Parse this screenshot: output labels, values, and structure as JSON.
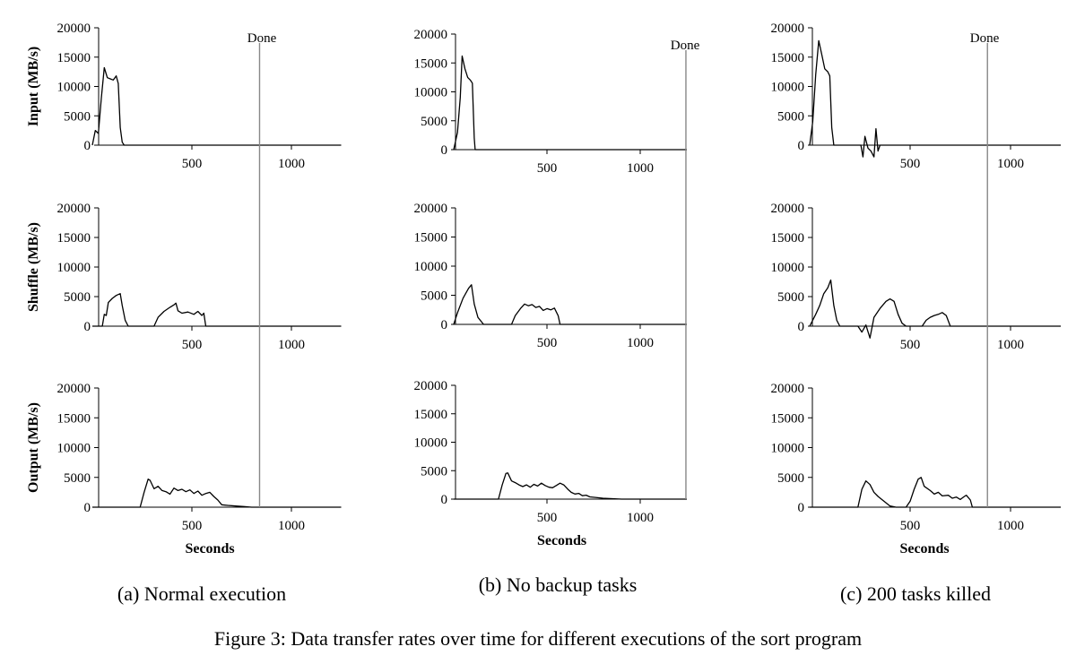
{
  "figure_caption": "Figure 3: Data transfer rates over time for different executions of the sort program",
  "panel_captions": [
    "(a) Normal execution",
    "(b) No backup tasks",
    "(c) 200 tasks killed"
  ],
  "row_labels": [
    "Input (MB/s)",
    "Shuffle (MB/s)",
    "Output (MB/s)"
  ],
  "x_label": "Seconds",
  "done_label": "Done",
  "y_ticks": [
    "0",
    "5000",
    "10000",
    "15000",
    "20000"
  ],
  "x_ticks": [
    "500",
    "1000"
  ],
  "chart_data": [
    {
      "type": "line",
      "panel": "(a) Normal execution",
      "ylim": [
        0,
        20000
      ],
      "xlim": [
        0,
        1250
      ],
      "done_x": 840,
      "series": [
        {
          "row": "Input (MB/s)",
          "points": [
            [
              0,
              0
            ],
            [
              15,
              2500
            ],
            [
              30,
              2000
            ],
            [
              45,
              8000
            ],
            [
              60,
              13200
            ],
            [
              75,
              11500
            ],
            [
              90,
              11300
            ],
            [
              105,
              11100
            ],
            [
              120,
              11800
            ],
            [
              130,
              10500
            ],
            [
              140,
              3000
            ],
            [
              150,
              500
            ],
            [
              160,
              0
            ],
            [
              1250,
              0
            ]
          ]
        },
        {
          "row": "Shuffle (MB/s)",
          "points": [
            [
              0,
              0
            ],
            [
              50,
              0
            ],
            [
              60,
              2000
            ],
            [
              70,
              1800
            ],
            [
              80,
              4000
            ],
            [
              100,
              4700
            ],
            [
              120,
              5200
            ],
            [
              140,
              5500
            ],
            [
              150,
              3500
            ],
            [
              165,
              1000
            ],
            [
              180,
              0
            ],
            [
              310,
              0
            ],
            [
              330,
              1500
            ],
            [
              360,
              2500
            ],
            [
              390,
              3200
            ],
            [
              410,
              3600
            ],
            [
              420,
              3900
            ],
            [
              430,
              2600
            ],
            [
              450,
              2200
            ],
            [
              480,
              2400
            ],
            [
              510,
              2000
            ],
            [
              530,
              2500
            ],
            [
              550,
              1800
            ],
            [
              560,
              2200
            ],
            [
              570,
              0
            ],
            [
              1250,
              0
            ]
          ]
        },
        {
          "row": "Output (MB/s)",
          "points": [
            [
              0,
              0
            ],
            [
              240,
              0
            ],
            [
              260,
              2500
            ],
            [
              280,
              4700
            ],
            [
              290,
              4500
            ],
            [
              310,
              3100
            ],
            [
              330,
              3500
            ],
            [
              350,
              2800
            ],
            [
              370,
              2600
            ],
            [
              390,
              2200
            ],
            [
              410,
              3200
            ],
            [
              430,
              2800
            ],
            [
              450,
              3000
            ],
            [
              470,
              2600
            ],
            [
              490,
              2900
            ],
            [
              510,
              2300
            ],
            [
              530,
              2700
            ],
            [
              550,
              2000
            ],
            [
              570,
              2300
            ],
            [
              590,
              2500
            ],
            [
              610,
              1800
            ],
            [
              630,
              1200
            ],
            [
              650,
              400
            ],
            [
              680,
              300
            ],
            [
              720,
              200
            ],
            [
              760,
              100
            ],
            [
              800,
              0
            ],
            [
              1250,
              0
            ]
          ]
        }
      ]
    },
    {
      "type": "line",
      "panel": "(b) No backup tasks",
      "ylim": [
        0,
        20000
      ],
      "xlim": [
        0,
        1250
      ],
      "done_x": 1245,
      "series": [
        {
          "row": "Input (MB/s)",
          "points": [
            [
              0,
              0
            ],
            [
              20,
              3000
            ],
            [
              35,
              9000
            ],
            [
              45,
              16200
            ],
            [
              60,
              14000
            ],
            [
              75,
              12500
            ],
            [
              90,
              12000
            ],
            [
              100,
              11500
            ],
            [
              110,
              2000
            ],
            [
              115,
              0
            ],
            [
              1250,
              0
            ]
          ]
        },
        {
          "row": "Shuffle (MB/s)",
          "points": [
            [
              0,
              0
            ],
            [
              20,
              2000
            ],
            [
              50,
              4500
            ],
            [
              80,
              6200
            ],
            [
              95,
              6800
            ],
            [
              110,
              3500
            ],
            [
              130,
              1200
            ],
            [
              160,
              0
            ],
            [
              310,
              0
            ],
            [
              330,
              1500
            ],
            [
              360,
              2800
            ],
            [
              380,
              3500
            ],
            [
              400,
              3200
            ],
            [
              420,
              3400
            ],
            [
              440,
              2900
            ],
            [
              460,
              3100
            ],
            [
              480,
              2400
            ],
            [
              500,
              2700
            ],
            [
              520,
              2500
            ],
            [
              540,
              2800
            ],
            [
              560,
              1500
            ],
            [
              570,
              0
            ],
            [
              1250,
              0
            ]
          ]
        },
        {
          "row": "Output (MB/s)",
          "points": [
            [
              0,
              0
            ],
            [
              240,
              0
            ],
            [
              260,
              2500
            ],
            [
              280,
              4500
            ],
            [
              290,
              4600
            ],
            [
              310,
              3200
            ],
            [
              330,
              2900
            ],
            [
              350,
              2500
            ],
            [
              370,
              2200
            ],
            [
              390,
              2500
            ],
            [
              410,
              2100
            ],
            [
              430,
              2600
            ],
            [
              450,
              2300
            ],
            [
              470,
              2800
            ],
            [
              490,
              2400
            ],
            [
              510,
              2100
            ],
            [
              530,
              2000
            ],
            [
              550,
              2400
            ],
            [
              570,
              2800
            ],
            [
              590,
              2500
            ],
            [
              610,
              1800
            ],
            [
              630,
              1200
            ],
            [
              650,
              900
            ],
            [
              670,
              1000
            ],
            [
              690,
              600
            ],
            [
              710,
              700
            ],
            [
              730,
              400
            ],
            [
              760,
              300
            ],
            [
              800,
              150
            ],
            [
              850,
              80
            ],
            [
              900,
              0
            ],
            [
              1250,
              0
            ]
          ]
        }
      ]
    },
    {
      "type": "line",
      "panel": "(c) 200 tasks killed",
      "ylim": [
        0,
        20000
      ],
      "xlim": [
        0,
        1250
      ],
      "done_x": 885,
      "series": [
        {
          "row": "Input (MB/s)",
          "points": [
            [
              0,
              0
            ],
            [
              15,
              4000
            ],
            [
              30,
              12000
            ],
            [
              45,
              17800
            ],
            [
              60,
              15500
            ],
            [
              75,
              13000
            ],
            [
              90,
              12500
            ],
            [
              100,
              11800
            ],
            [
              110,
              3000
            ],
            [
              120,
              0
            ],
            [
              255,
              0
            ],
            [
              265,
              -2000
            ],
            [
              275,
              1500
            ],
            [
              290,
              -500
            ],
            [
              305,
              -1000
            ],
            [
              320,
              -2000
            ],
            [
              330,
              2800
            ],
            [
              340,
              -1000
            ],
            [
              350,
              0
            ],
            [
              1250,
              0
            ]
          ]
        },
        {
          "row": "Shuffle (MB/s)",
          "points": [
            [
              0,
              0
            ],
            [
              30,
              2000
            ],
            [
              50,
              3500
            ],
            [
              70,
              5500
            ],
            [
              90,
              6500
            ],
            [
              105,
              7800
            ],
            [
              120,
              3500
            ],
            [
              135,
              1000
            ],
            [
              150,
              0
            ],
            [
              240,
              0
            ],
            [
              260,
              -1000
            ],
            [
              280,
              200
            ],
            [
              300,
              -2000
            ],
            [
              320,
              1500
            ],
            [
              350,
              3000
            ],
            [
              380,
              4200
            ],
            [
              400,
              4600
            ],
            [
              420,
              4200
            ],
            [
              440,
              2000
            ],
            [
              460,
              500
            ],
            [
              480,
              0
            ],
            [
              560,
              0
            ],
            [
              580,
              1000
            ],
            [
              600,
              1500
            ],
            [
              620,
              1800
            ],
            [
              640,
              2000
            ],
            [
              660,
              2300
            ],
            [
              680,
              1800
            ],
            [
              700,
              0
            ],
            [
              1250,
              0
            ]
          ]
        },
        {
          "row": "Output (MB/s)",
          "points": [
            [
              0,
              0
            ],
            [
              240,
              0
            ],
            [
              260,
              3000
            ],
            [
              280,
              4400
            ],
            [
              300,
              3800
            ],
            [
              320,
              2500
            ],
            [
              340,
              1800
            ],
            [
              370,
              1000
            ],
            [
              400,
              200
            ],
            [
              430,
              0
            ],
            [
              480,
              0
            ],
            [
              500,
              1000
            ],
            [
              520,
              3000
            ],
            [
              540,
              4700
            ],
            [
              555,
              5000
            ],
            [
              570,
              3500
            ],
            [
              600,
              2800
            ],
            [
              620,
              2200
            ],
            [
              640,
              2500
            ],
            [
              660,
              1900
            ],
            [
              690,
              2000
            ],
            [
              710,
              1500
            ],
            [
              730,
              1700
            ],
            [
              750,
              1300
            ],
            [
              770,
              1800
            ],
            [
              780,
              2000
            ],
            [
              800,
              1200
            ],
            [
              810,
              0
            ],
            [
              1250,
              0
            ]
          ]
        }
      ]
    }
  ]
}
